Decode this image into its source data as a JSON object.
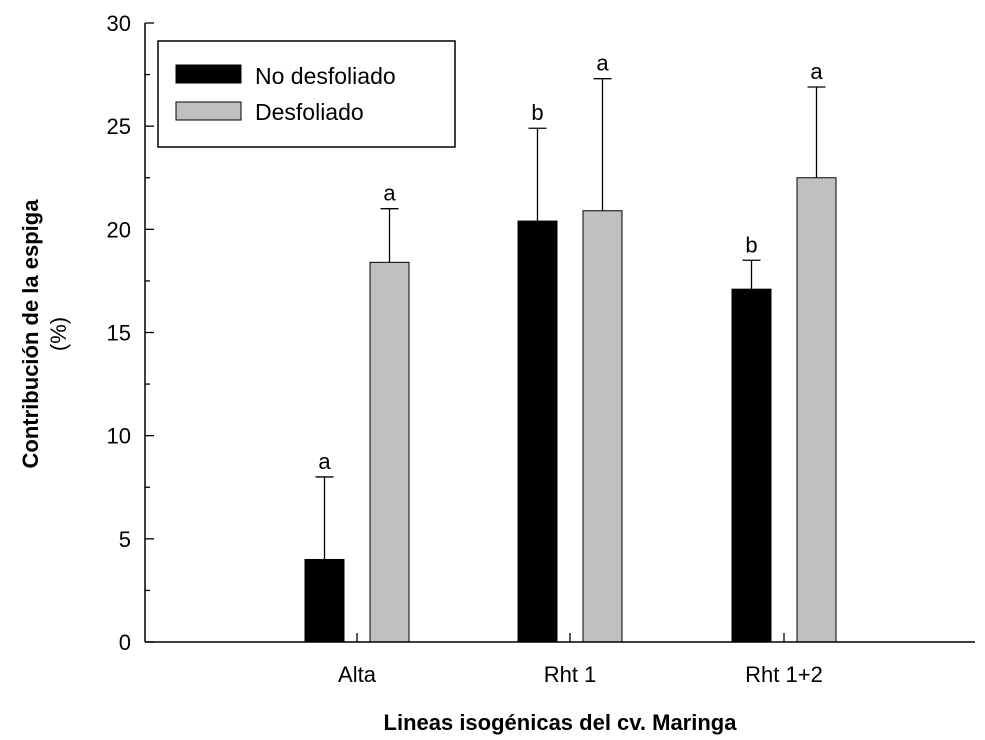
{
  "chart_data": {
    "type": "bar",
    "categories": [
      "Alta",
      "Rht 1",
      "Rht 1+2"
    ],
    "series": [
      {
        "name": "No desfoliado",
        "color": "#000000",
        "values": [
          4.0,
          20.4,
          17.1
        ],
        "errors": [
          4.0,
          4.5,
          1.4
        ],
        "letters": [
          "a",
          "b",
          "b"
        ]
      },
      {
        "name": "Desfoliado",
        "color": "#c0c0c0",
        "values": [
          18.4,
          20.9,
          22.5
        ],
        "errors": [
          2.6,
          6.4,
          4.4
        ],
        "letters": [
          "a",
          "a",
          "a"
        ]
      }
    ],
    "xlabel": "Lineas isogénicas del cv. Maringa",
    "ylabel": "Contribución de la espiga",
    "ylabel_unit": "(%)",
    "ylim": [
      0,
      30
    ],
    "yticks": [
      "0",
      "5",
      "10",
      "15",
      "20",
      "25",
      "30"
    ],
    "legend_position": "top-left",
    "grid": false
  }
}
